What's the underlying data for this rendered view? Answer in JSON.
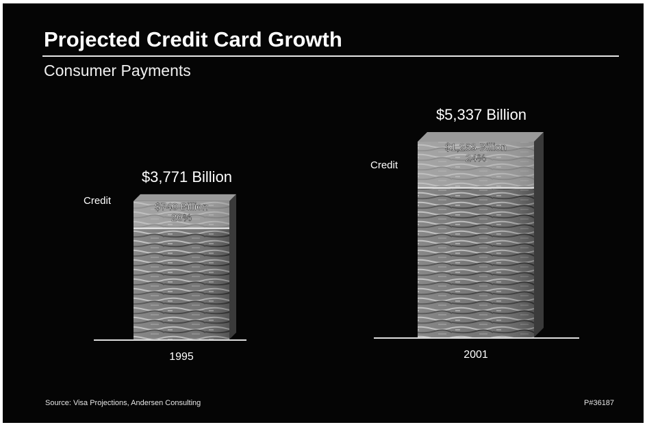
{
  "slide": {
    "title": "Projected Credit Card Growth",
    "subtitle": "Consumer Payments",
    "source": "Source: Visa Projections, Andersen Consulting",
    "slide_id": "P#36187"
  },
  "colors": {
    "background": "#050505",
    "text": "#ffffff",
    "bar_texture": "#8a8a8a",
    "credit_segment": "#d6d6d6"
  },
  "chart_data": {
    "type": "bar",
    "stacked": true,
    "unit": "Billion",
    "categories": [
      "1995",
      "2001"
    ],
    "series": [
      {
        "name": "Credit",
        "values": [
          740,
          1263
        ]
      }
    ],
    "totals": [
      3771,
      5337
    ],
    "total_labels": [
      "$3,771 Billion",
      "$5,337 Billion"
    ],
    "credit_value_labels": [
      "$740 Billion",
      "$1,263 Billion"
    ],
    "credit_percent_labels": [
      "20%",
      "24%"
    ],
    "credit_percent": [
      20,
      24
    ],
    "segment_label": "Credit",
    "ylim": [
      0,
      5337
    ]
  }
}
